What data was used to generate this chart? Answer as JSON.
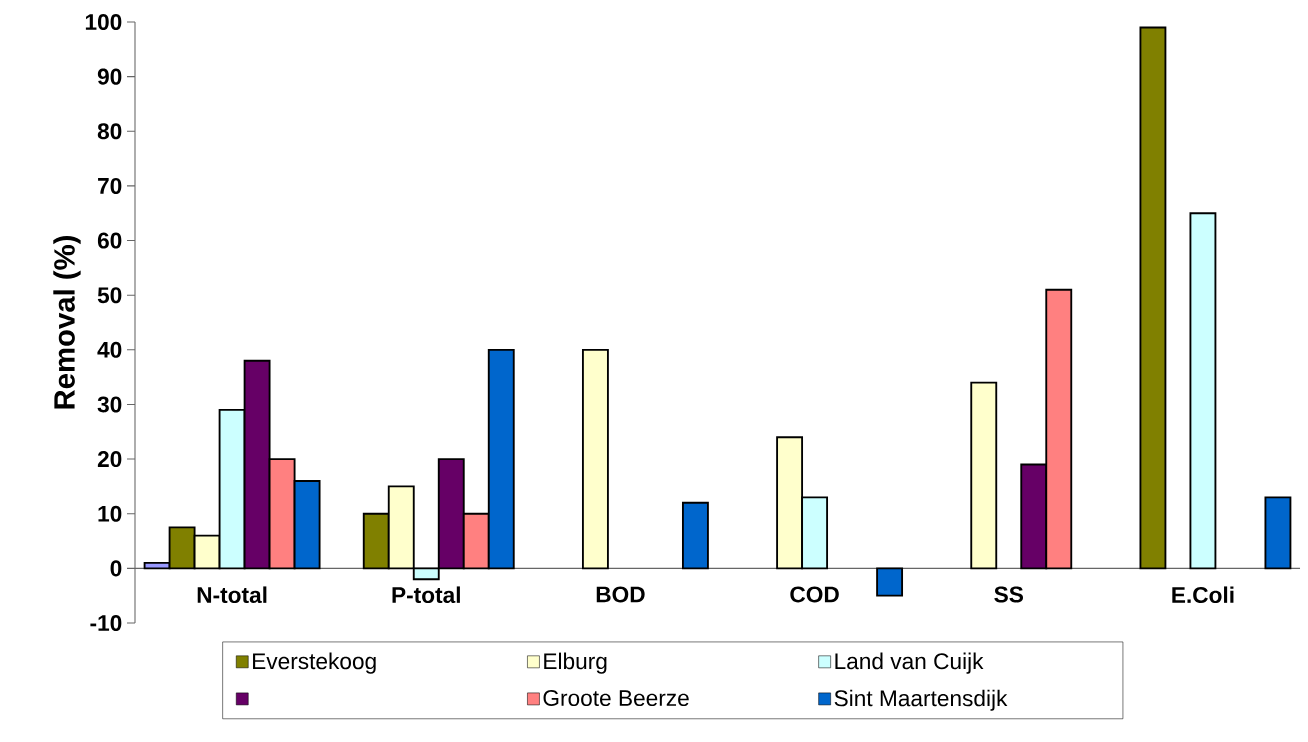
{
  "chart_data": {
    "type": "bar",
    "ylabel": "Removal (%)",
    "categories": [
      "N-total",
      "P-total",
      "BOD",
      "COD",
      "SS",
      "E.Coli"
    ],
    "ylim": [
      -10,
      100
    ],
    "yticks": [
      -10,
      0,
      10,
      20,
      30,
      40,
      50,
      60,
      70,
      80,
      90,
      100
    ],
    "legend": "bottom",
    "grid": false,
    "series": [
      {
        "color": "#9999ff",
        "values": [
          1,
          null,
          null,
          null,
          null,
          null
        ]
      },
      {
        "name": "Everstekoog",
        "color": "#808000",
        "values": [
          7.5,
          10,
          null,
          null,
          null,
          99
        ]
      },
      {
        "name": "Elburg",
        "color": "#ffffcc",
        "values": [
          6,
          15,
          40,
          24,
          34,
          null
        ]
      },
      {
        "name": "Land van Cuijk",
        "color": "#ccffff",
        "values": [
          29,
          -2,
          null,
          13,
          null,
          65
        ]
      },
      {
        "color": "#660066",
        "values": [
          38,
          20,
          null,
          null,
          19,
          null
        ]
      },
      {
        "name": "Groote Beerze",
        "color": "#ff8080",
        "values": [
          20,
          10,
          null,
          null,
          51,
          null
        ]
      },
      {
        "name": "Sint Maartensdijk",
        "color": "#0066cc",
        "values": [
          16,
          40,
          12,
          -5,
          null,
          13
        ]
      }
    ]
  }
}
